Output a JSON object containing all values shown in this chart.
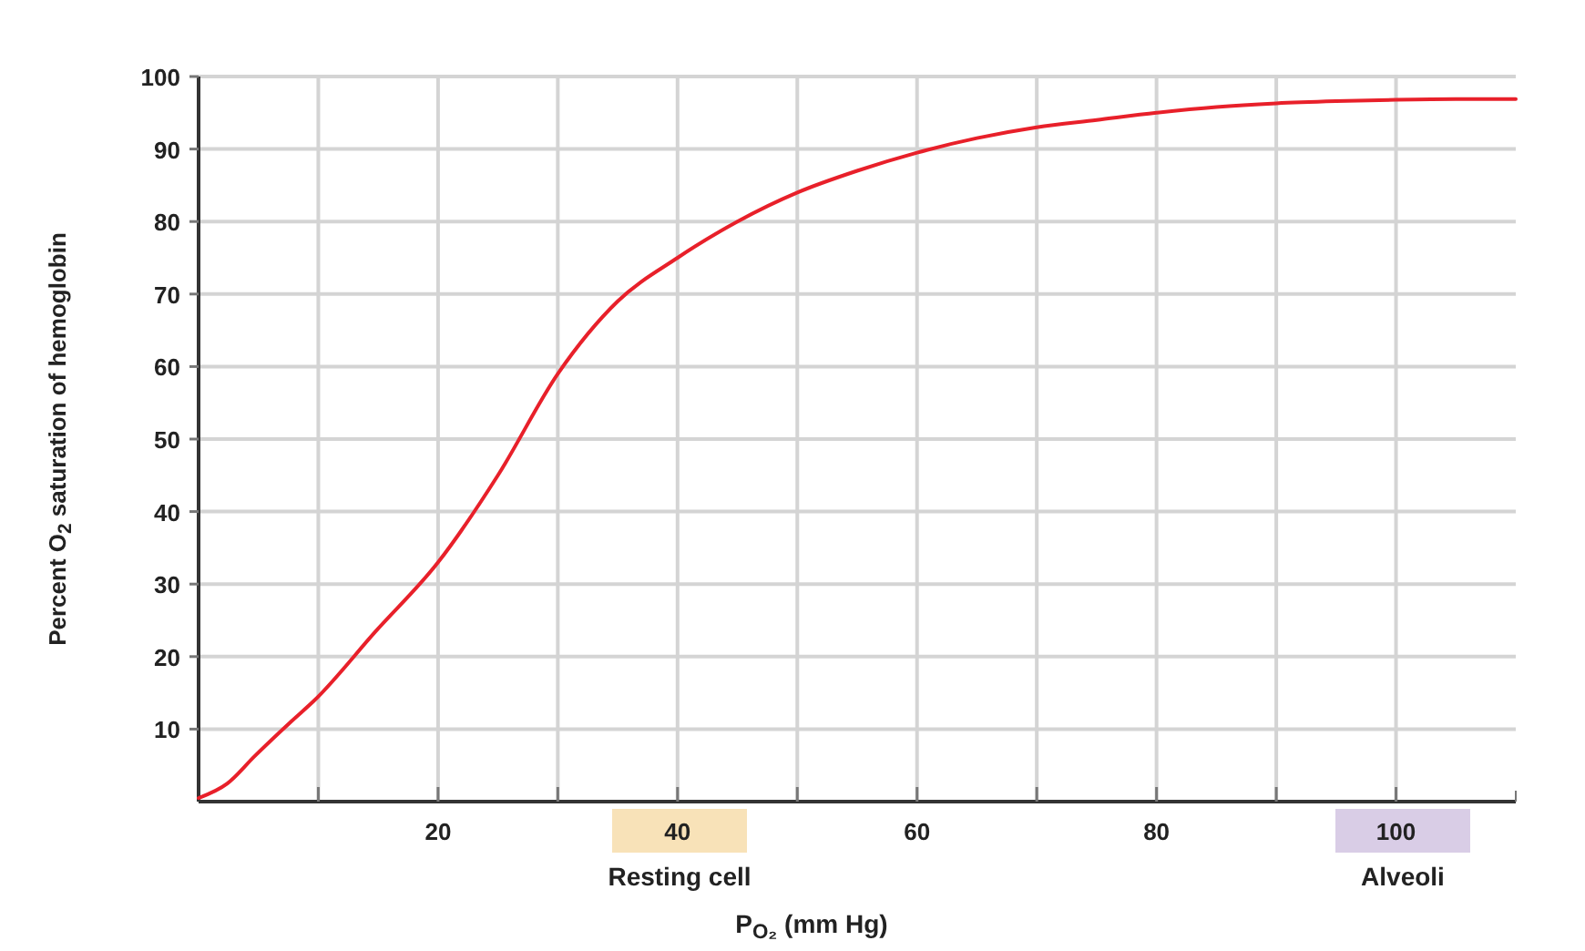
{
  "chart_data": {
    "type": "line",
    "xlabel": "P$_{O₂}$ (mm Hg)",
    "ylabel": "Percent O$_{2}$ saturation of hemoglobin",
    "series": [
      {
        "color": "#e8202a",
        "x": [
          0,
          2.4,
          4.7,
          7.7,
          9.7,
          14.8,
          20,
          25,
          30,
          35,
          40,
          45,
          50,
          55,
          60,
          65,
          70,
          75,
          80,
          85,
          90,
          95,
          100,
          105,
          110
        ],
        "values": [
          0.5,
          2.5,
          6.3,
          11,
          14,
          23.5,
          33,
          45,
          59,
          69,
          75,
          80,
          84,
          87,
          89.5,
          91.5,
          93,
          94,
          95,
          95.8,
          96.3,
          96.6,
          96.8,
          96.9,
          96.9
        ]
      }
    ],
    "xlim": [
      0,
      110
    ],
    "xticks": [
      {
        "value": 10,
        "label": null
      },
      20,
      {
        "value": 30,
        "label": null
      },
      40,
      {
        "value": 50,
        "label": null
      },
      60,
      {
        "value": 70,
        "label": null
      },
      80,
      {
        "value": 90,
        "label": null
      },
      100
    ],
    "ylim": [
      0,
      100
    ],
    "yticks": [
      10,
      20,
      30,
      40,
      50,
      60,
      70,
      80,
      90,
      100
    ],
    "grid": true,
    "annotations": [
      "Resting cell",
      "Alveoli"
    ]
  }
}
